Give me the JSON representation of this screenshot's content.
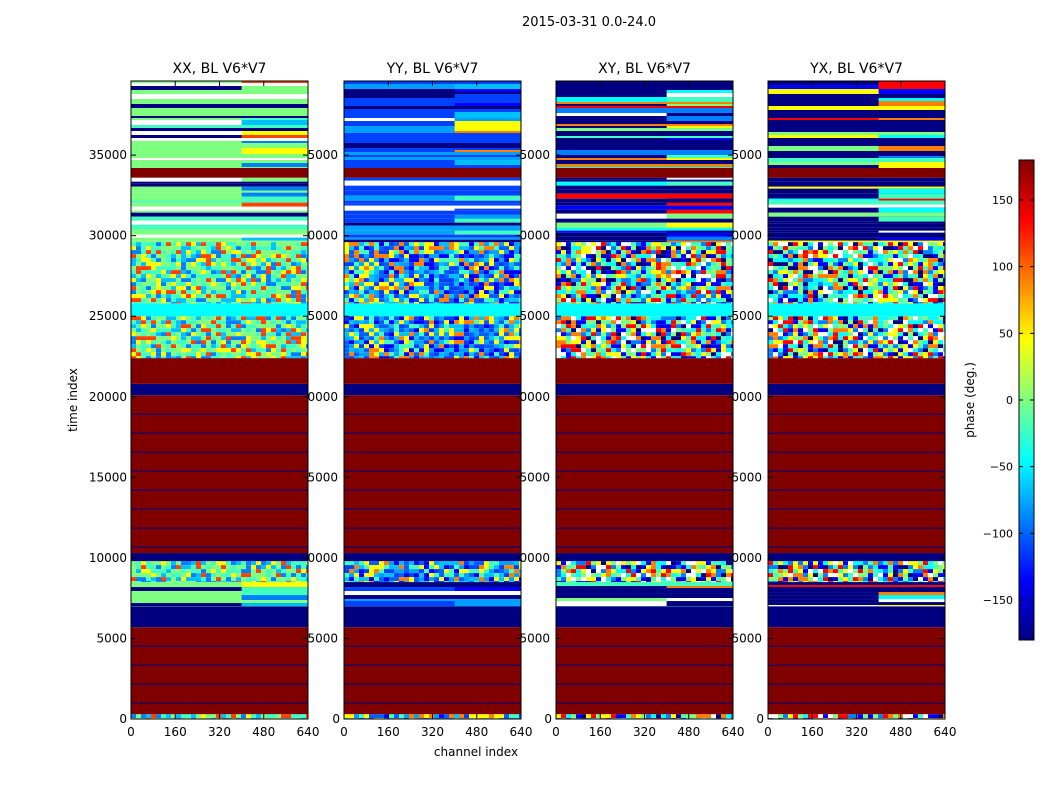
{
  "chart_data": {
    "type": "heatmap",
    "suptitle": "2015-03-31 0.0-24.0",
    "xlabel": "channel index",
    "ylabel": "time index",
    "xlim": [
      0,
      640
    ],
    "ylim": [
      0,
      39600
    ],
    "xticks": [
      0,
      160,
      320,
      480,
      640
    ],
    "yticks": [
      0,
      5000,
      10000,
      15000,
      20000,
      25000,
      30000,
      35000
    ],
    "ytick_labels_overlapped": [
      "5000",
      "0000",
      "5000",
      "0000",
      "5000",
      "0000",
      "5000"
    ],
    "panels": [
      {
        "title": "XX, BL V6*V7",
        "noise_palette": [
          "#7fff7f",
          "#40ffbf",
          "#7fff7f",
          "#ffff00",
          "#0080ff",
          "#ff4000",
          "#40ffbf",
          "#00c0ff"
        ]
      },
      {
        "title": "YY, BL V6*V7",
        "noise_palette": [
          "#0040ff",
          "#00a0ff",
          "#0000ff",
          "#40ffbf",
          "#0060ff",
          "#ffff00",
          "#00c0ff",
          "#ff8000"
        ]
      },
      {
        "title": "XY, BL V6*V7",
        "noise_palette": [
          "#00ffff",
          "#ff0000",
          "#ffff00",
          "#0000ff",
          "#7fff7f",
          "#ff8000",
          "#0080ff",
          "#000080",
          "#40ffbf",
          "#ffffff"
        ]
      },
      {
        "title": "YX, BL V6*V7",
        "noise_palette": [
          "#00ffff",
          "#ff0000",
          "#ffff00",
          "#0000ff",
          "#7fff7f",
          "#ff8000",
          "#0080ff",
          "#000080",
          "#40ffbf",
          "#ffffff"
        ]
      }
    ],
    "bands": [
      {
        "from": 0,
        "to": 300,
        "kind": "noise"
      },
      {
        "from": 300,
        "to": 5700,
        "kind": "solid",
        "value": 180
      },
      {
        "from": 5700,
        "to": 7000,
        "kind": "solid",
        "value": -180
      },
      {
        "from": 7000,
        "to": 8500,
        "kind": "stripes"
      },
      {
        "from": 8500,
        "to": 9800,
        "kind": "noise"
      },
      {
        "from": 9800,
        "to": 10300,
        "kind": "solid",
        "value": -180
      },
      {
        "from": 10300,
        "to": 20100,
        "kind": "solid",
        "value": 180
      },
      {
        "from": 20100,
        "to": 20800,
        "kind": "solid",
        "value": -180
      },
      {
        "from": 20800,
        "to": 22400,
        "kind": "solid",
        "value": 180
      },
      {
        "from": 22400,
        "to": 25000,
        "kind": "noise"
      },
      {
        "from": 25000,
        "to": 25800,
        "kind": "solid",
        "value": -40
      },
      {
        "from": 25800,
        "to": 29600,
        "kind": "noise"
      },
      {
        "from": 29600,
        "to": 33600,
        "kind": "stripes"
      },
      {
        "from": 33600,
        "to": 34200,
        "kind": "solid",
        "value": 180
      },
      {
        "from": 34200,
        "to": 39600,
        "kind": "stripes"
      }
    ],
    "colorbar": {
      "label": "phase (deg.)",
      "range": [
        -180,
        180
      ],
      "ticks": [
        150,
        100,
        50,
        0,
        -50,
        -100,
        -150
      ],
      "tick_labels": [
        "150",
        "100",
        "50",
        "0",
        "−50",
        "−100",
        "−150"
      ],
      "colors": [
        "#000080",
        "#0000ff",
        "#0080ff",
        "#00ffff",
        "#7fff7f",
        "#ffff00",
        "#ff8000",
        "#ff0000",
        "#800000"
      ]
    }
  }
}
